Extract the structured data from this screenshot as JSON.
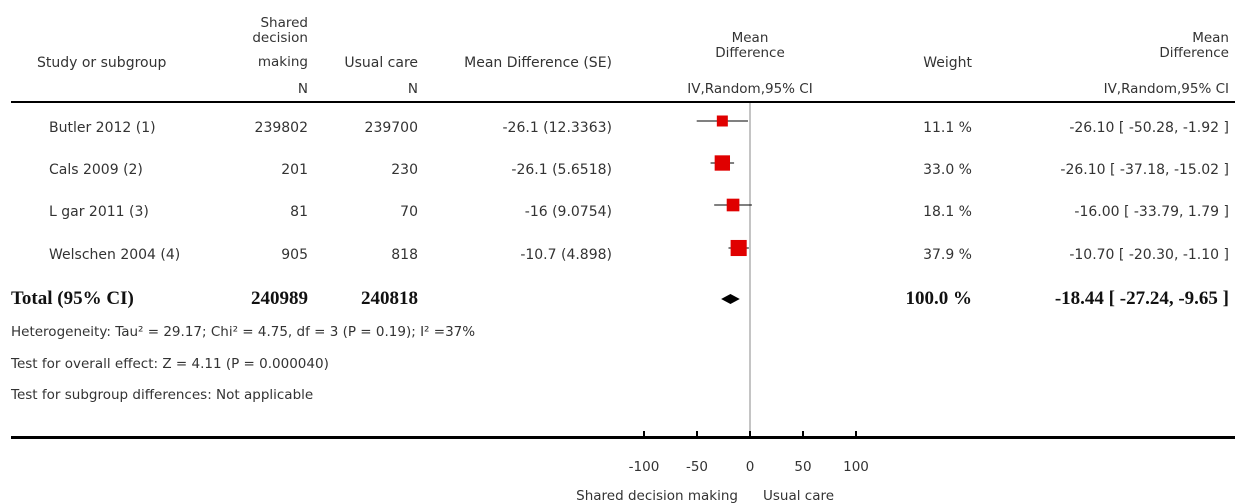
{
  "header": {
    "study": "Study or subgroup",
    "experimental": [
      "Shared",
      "decision",
      "making"
    ],
    "control": "Usual care",
    "md_se": "Mean Difference (SE)",
    "md_plot": [
      "Mean",
      "Difference"
    ],
    "weight": "Weight",
    "md_ci": [
      "Mean",
      "Difference"
    ],
    "n_exp": "N",
    "n_ctrl": "N",
    "method_plot": "IV,Random,95% CI",
    "method_ci": "IV,Random,95% CI"
  },
  "rows": [
    {
      "study": "Butler 2012 (1)",
      "n_exp": "239802",
      "n_ctrl": "239700",
      "md_se": "-26.1 (12.3363)",
      "weight": "11.1 %",
      "ci": "-26.10 [ -50.28, -1.92 ]"
    },
    {
      "study": "Cals 2009 (2)",
      "n_exp": "201",
      "n_ctrl": "230",
      "md_se": "-26.1 (5.6518)",
      "weight": "33.0 %",
      "ci": "-26.10 [ -37.18, -15.02 ]"
    },
    {
      "study": "L   gar   2011 (3)",
      "n_exp": "81",
      "n_ctrl": "70",
      "md_se": "-16 (9.0754)",
      "weight": "18.1 %",
      "ci": "-16.00 [ -33.79, 1.79 ]"
    },
    {
      "study": "Welschen 2004 (4)",
      "n_exp": "905",
      "n_ctrl": "818",
      "md_se": "-10.7 (4.898)",
      "weight": "37.9 %",
      "ci": "-10.70 [ -20.30, -1.10 ]"
    }
  ],
  "total": {
    "label": "Total (95% CI)",
    "n_exp": "240989",
    "n_ctrl": "240818",
    "weight": "100.0 %",
    "ci": "-18.44 [ -27.24, -9.65 ]"
  },
  "footer": {
    "heterogeneity": "Heterogeneity: Tau² = 29.17; Chi² = 4.75, df = 3 (P = 0.19); I² =37%",
    "overall": "Test for overall effect: Z = 4.11 (P = 0.000040)",
    "subgroup": "Test for subgroup differences: Not applicable"
  },
  "axis": {
    "ticks": [
      "-100",
      "-50",
      "0",
      "50",
      "100"
    ],
    "left_label": "Shared decision making",
    "right_label": "Usual care"
  },
  "chart_data": {
    "type": "forest",
    "xlim": [
      -100,
      100
    ],
    "ticks": [
      -100,
      -50,
      0,
      50,
      100
    ],
    "studies": [
      {
        "name": "Butler 2012 (1)",
        "md": -26.1,
        "lower": -50.28,
        "upper": -1.92,
        "weight": 11.1
      },
      {
        "name": "Cals 2009 (2)",
        "md": -26.1,
        "lower": -37.18,
        "upper": -15.02,
        "weight": 33.0
      },
      {
        "name": "L   gar   2011 (3)",
        "md": -16.0,
        "lower": -33.79,
        "upper": 1.79,
        "weight": 18.1
      },
      {
        "name": "Welschen 2004 (4)",
        "md": -10.7,
        "lower": -20.3,
        "upper": -1.1,
        "weight": 37.9
      }
    ],
    "pooled": {
      "md": -18.44,
      "lower": -27.24,
      "upper": -9.65
    },
    "colors": {
      "square": "#e00000",
      "line": "#000000",
      "diamond": "#000000"
    }
  }
}
